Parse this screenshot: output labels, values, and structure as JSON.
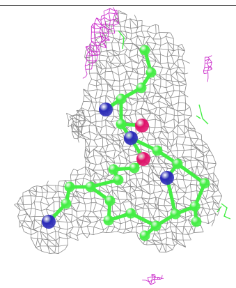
{
  "scene": {
    "colors": {
      "background": "#ffffff",
      "density_mesh": "#8a8a8a",
      "difference_map_positive": "#cc33cc",
      "carbon": "#44ee44",
      "nitrogen": "#2a2ab8",
      "oxygen": "#e0106a",
      "frame_rule": "#000000"
    },
    "representation": "ball-and-stick",
    "mesh_style": "wireframe"
  }
}
